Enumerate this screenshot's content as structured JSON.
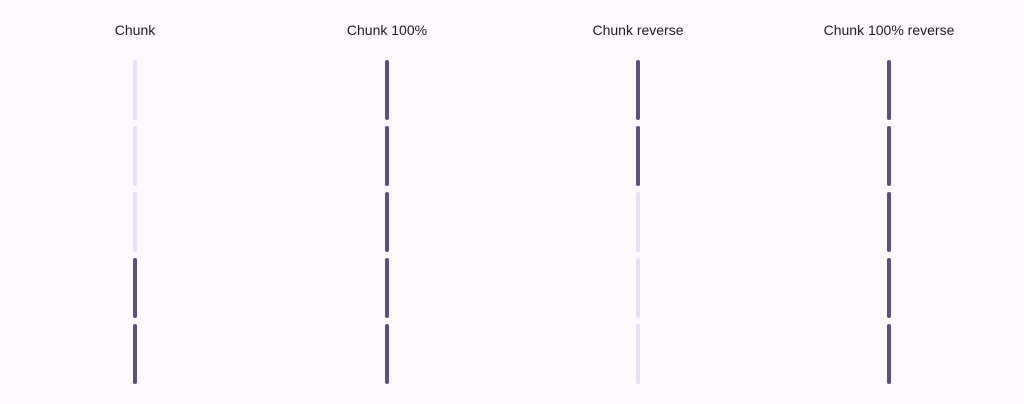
{
  "colors": {
    "background": "#fcf8fd",
    "active": "#5c5080",
    "inactive": "#e6dff8",
    "text": "#1c1b1f"
  },
  "indicators": [
    {
      "title": "Chunk",
      "total_chunks": 5,
      "progress": 0.4,
      "reverse": false
    },
    {
      "title": "Chunk 100%",
      "total_chunks": 5,
      "progress": 1.0,
      "reverse": false
    },
    {
      "title": "Chunk reverse",
      "total_chunks": 5,
      "progress": 0.4,
      "reverse": true
    },
    {
      "title": "Chunk 100% reverse",
      "total_chunks": 5,
      "progress": 1.0,
      "reverse": true
    }
  ]
}
